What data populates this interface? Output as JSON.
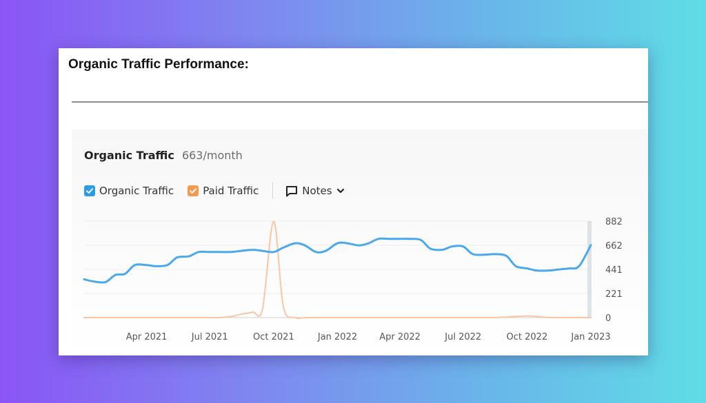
{
  "page": {
    "heading": "Organic Traffic Performance:"
  },
  "widget": {
    "title": "Organic Traffic",
    "value": "663/month",
    "legend": [
      {
        "label": "Organic Traffic",
        "color": "#2d9ce8",
        "checked": true,
        "icon": "check-icon"
      },
      {
        "label": "Paid Traffic",
        "color": "#f59a4c",
        "checked": true,
        "icon": "check-icon"
      }
    ],
    "notes_label": "Notes",
    "notes_icon": "comment-icon",
    "notes_chevron": "chevron-down-icon"
  },
  "chart_data": {
    "type": "line",
    "x": [
      "2021-01-01",
      "2021-01-15",
      "2021-02-01",
      "2021-02-15",
      "2021-03-01",
      "2021-03-15",
      "2021-04-01",
      "2021-04-15",
      "2021-05-01",
      "2021-05-15",
      "2021-06-01",
      "2021-06-15",
      "2021-07-01",
      "2021-07-15",
      "2021-08-01",
      "2021-08-15",
      "2021-09-01",
      "2021-09-15",
      "2021-10-01",
      "2021-10-15",
      "2021-11-01",
      "2021-11-15",
      "2021-12-01",
      "2021-12-15",
      "2022-01-01",
      "2022-01-15",
      "2022-02-01",
      "2022-02-15",
      "2022-03-01",
      "2022-03-15",
      "2022-04-01",
      "2022-04-15",
      "2022-05-01",
      "2022-05-15",
      "2022-06-01",
      "2022-06-15",
      "2022-07-01",
      "2022-07-15",
      "2022-08-01",
      "2022-08-15",
      "2022-09-01",
      "2022-09-15",
      "2022-10-01",
      "2022-10-15",
      "2022-11-01",
      "2022-11-15",
      "2022-12-01",
      "2022-12-15",
      "2023-01-01"
    ],
    "series": [
      {
        "name": "Organic Traffic",
        "color": "#4aa8ec",
        "values": [
          350,
          330,
          325,
          390,
          400,
          480,
          480,
          470,
          480,
          550,
          560,
          600,
          600,
          600,
          600,
          610,
          620,
          610,
          600,
          640,
          680,
          660,
          600,
          610,
          680,
          680,
          660,
          680,
          720,
          720,
          720,
          720,
          710,
          630,
          620,
          650,
          650,
          580,
          575,
          580,
          565,
          470,
          450,
          430,
          430,
          440,
          450,
          470,
          663
        ]
      },
      {
        "name": "Paid Traffic",
        "color": "#f9c5a2",
        "values": [
          0,
          0,
          0,
          0,
          0,
          0,
          0,
          0,
          0,
          0,
          0,
          0,
          0,
          0,
          10,
          30,
          50,
          80,
          880,
          100,
          0,
          0,
          0,
          0,
          0,
          0,
          0,
          0,
          0,
          0,
          0,
          0,
          0,
          0,
          0,
          0,
          0,
          0,
          0,
          0,
          5,
          10,
          15,
          10,
          0,
          0,
          0,
          0,
          0
        ]
      }
    ],
    "x_ticks": [
      "Apr 2021",
      "Jul 2021",
      "Oct 2021",
      "Jan 2022",
      "Apr 2022",
      "Jul 2022",
      "Oct 2022",
      "Jan 2023"
    ],
    "x_tick_dates": [
      "2021-04-01",
      "2021-07-01",
      "2021-10-01",
      "2022-01-01",
      "2022-04-01",
      "2022-07-01",
      "2022-10-01",
      "2023-01-01"
    ],
    "y_ticks": [
      0,
      221,
      441,
      662,
      882
    ],
    "ylim": [
      0,
      882
    ],
    "y_axis_side": "right",
    "grid": true,
    "legend_position": "top-left",
    "title": "Organic Traffic"
  }
}
